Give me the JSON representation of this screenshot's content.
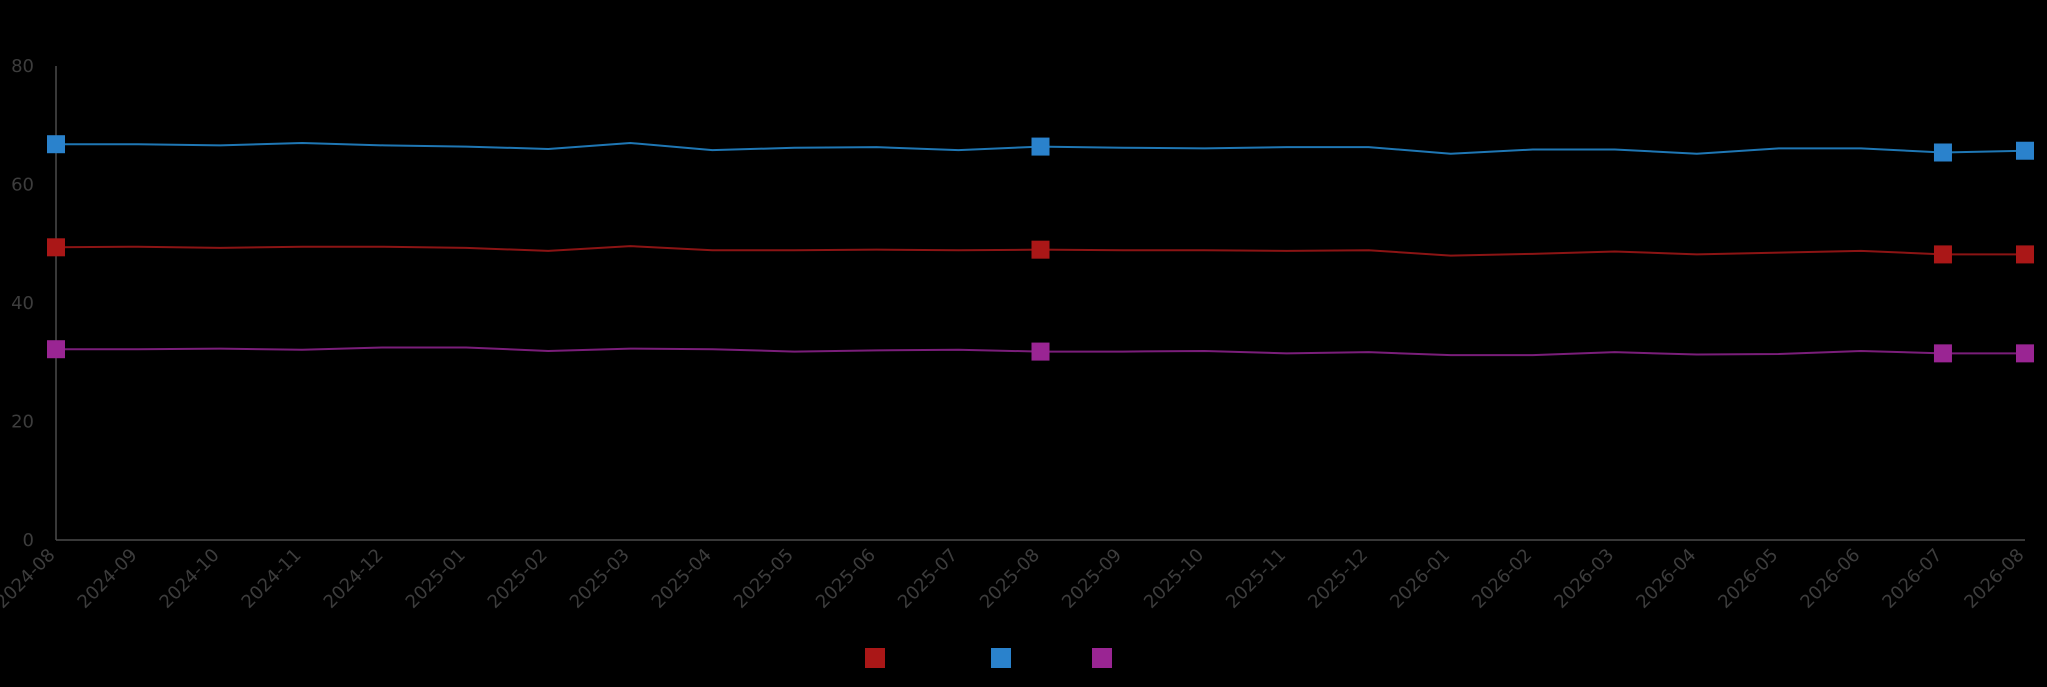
{
  "chart_data": {
    "type": "line",
    "title": "",
    "xlabel": "",
    "ylabel": "",
    "ylim": [
      0,
      80
    ],
    "yticks": [
      0,
      20,
      40,
      60,
      80
    ],
    "categories": [
      "2024-08",
      "2024-09",
      "2024-10",
      "2024-11",
      "2024-12",
      "2025-01",
      "2025-02",
      "2025-03",
      "2025-04",
      "2025-05",
      "2025-06",
      "2025-07",
      "2025-08",
      "2025-09",
      "2025-10",
      "2025-11",
      "2025-12",
      "2026-01",
      "2026-02",
      "2026-03",
      "2026-04",
      "2026-05",
      "2026-06",
      "2026-07",
      "2026-08"
    ],
    "grid": false,
    "legend": "bottom-center",
    "series": [
      {
        "color": "#1f77b4",
        "marker_color": "#2a82cc",
        "values": [
          66.8,
          66.8,
          66.6,
          67.0,
          66.6,
          66.4,
          66.0,
          67.0,
          65.8,
          66.2,
          66.3,
          65.8,
          66.4,
          66.2,
          66.1,
          66.3,
          66.3,
          65.2,
          65.9,
          65.9,
          65.2,
          66.1,
          66.1,
          65.4,
          65.7
        ],
        "markers_at": [
          0,
          12,
          23,
          24
        ]
      },
      {
        "color": "#8b1414",
        "marker_color": "#aa1717",
        "values": [
          49.4,
          49.5,
          49.3,
          49.5,
          49.5,
          49.3,
          48.8,
          49.6,
          48.9,
          48.9,
          49.0,
          48.9,
          49.0,
          48.9,
          48.9,
          48.8,
          48.9,
          48.0,
          48.3,
          48.7,
          48.2,
          48.5,
          48.8,
          48.2,
          48.2
        ],
        "markers_at": [
          0,
          12,
          23,
          24
        ]
      },
      {
        "color": "#7a1e7a",
        "marker_color": "#9a2593",
        "values": [
          32.2,
          32.2,
          32.3,
          32.1,
          32.5,
          32.5,
          31.9,
          32.3,
          32.2,
          31.8,
          32.0,
          32.1,
          31.8,
          31.8,
          31.9,
          31.5,
          31.7,
          31.2,
          31.2,
          31.7,
          31.3,
          31.4,
          31.9,
          31.5,
          31.5
        ],
        "markers_at": [
          0,
          12,
          23,
          24
        ]
      }
    ],
    "legend_entries": [
      {
        "color": "#aa1717"
      },
      {
        "color": "#2a82cc"
      },
      {
        "color": "#9a2593"
      }
    ]
  }
}
